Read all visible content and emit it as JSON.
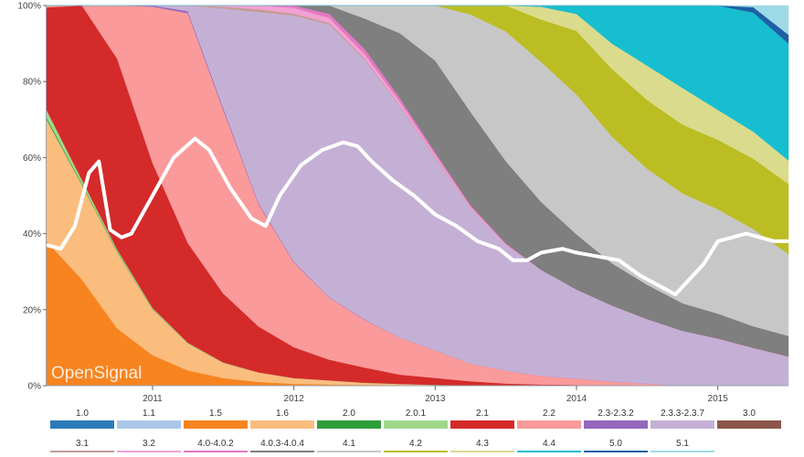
{
  "watermark": "OpenSignal",
  "chart_data": {
    "type": "area",
    "stacked": true,
    "percent_axis": true,
    "x": [
      2010.25,
      2010.5,
      2010.75,
      2011.0,
      2011.25,
      2011.5,
      2011.75,
      2012.0,
      2012.25,
      2012.5,
      2012.75,
      2013.0,
      2013.25,
      2013.5,
      2013.75,
      2014.0,
      2014.25,
      2014.5,
      2014.75,
      2015.0,
      2015.25,
      2015.5
    ],
    "ylim": [
      0,
      100
    ],
    "yticks": [
      "0%",
      "20%",
      "40%",
      "60%",
      "80%",
      "100%"
    ],
    "xticks": [
      {
        "value": 2011,
        "label": "2011"
      },
      {
        "value": 2012,
        "label": "2012"
      },
      {
        "value": 2013,
        "label": "2013"
      },
      {
        "value": 2014,
        "label": "2014"
      },
      {
        "value": 2015,
        "label": "2015"
      }
    ],
    "grid": false,
    "legend_position": "bottom",
    "series": [
      {
        "name": "1.0",
        "color": "#2b7bb9",
        "values": [
          0,
          0,
          0,
          0,
          0,
          0,
          0,
          0,
          0,
          0,
          0,
          0,
          0,
          0,
          0,
          0,
          0,
          0,
          0,
          0,
          0,
          0
        ]
      },
      {
        "name": "1.1",
        "color": "#aac7e8",
        "values": [
          0,
          0,
          0,
          0,
          0,
          0,
          0,
          0,
          0,
          0,
          0,
          0,
          0,
          0,
          0,
          0,
          0,
          0,
          0,
          0,
          0,
          0
        ]
      },
      {
        "name": "1.5",
        "color": "#f7841f",
        "values": [
          38,
          28,
          15,
          8,
          4,
          2,
          1,
          0.5,
          0.3,
          0.2,
          0.1,
          0,
          0,
          0,
          0,
          0,
          0,
          0,
          0,
          0,
          0,
          0
        ]
      },
      {
        "name": "1.6",
        "color": "#fbbd7e",
        "values": [
          32,
          25,
          20,
          12,
          7,
          4,
          2.5,
          1.5,
          1,
          0.5,
          0.3,
          0.2,
          0,
          0,
          0,
          0,
          0,
          0,
          0,
          0,
          0,
          0
        ]
      },
      {
        "name": "2.0",
        "color": "#2e9e3b",
        "values": [
          0.5,
          0.3,
          0.2,
          0.1,
          0,
          0,
          0,
          0,
          0,
          0,
          0,
          0,
          0,
          0,
          0,
          0,
          0,
          0,
          0,
          0,
          0,
          0
        ]
      },
      {
        "name": "2.0.1",
        "color": "#9fd88b",
        "values": [
          2,
          1,
          0.5,
          0.3,
          0.2,
          0.1,
          0,
          0,
          0,
          0,
          0,
          0,
          0,
          0,
          0,
          0,
          0,
          0,
          0,
          0,
          0,
          0
        ]
      },
      {
        "name": "2.1",
        "color": "#d42a2a",
        "values": [
          27,
          46,
          50,
          38,
          26,
          18,
          12,
          8,
          5,
          3.5,
          2,
          1.5,
          1,
          0.5,
          0.3,
          0.2,
          0,
          0,
          0,
          0,
          0,
          0
        ]
      },
      {
        "name": "2.2",
        "color": "#fb9a9a",
        "values": [
          0.5,
          0,
          14,
          41,
          60,
          48,
          32,
          22,
          15,
          11,
          8,
          6,
          4,
          3,
          2,
          1.5,
          1,
          0.5,
          0,
          0,
          0,
          0
        ]
      },
      {
        "name": "2.3-2.3.2",
        "color": "#9467bd",
        "values": [
          0,
          0,
          0,
          0.3,
          0.5,
          0.5,
          0.3,
          0.2,
          0.1,
          0.1,
          0,
          0,
          0,
          0,
          0,
          0,
          0,
          0,
          0,
          0,
          0,
          0
        ]
      },
      {
        "name": "2.3.3-2.3.7",
        "color": "#c5b0d5",
        "values": [
          0,
          0,
          0,
          0,
          1.5,
          26,
          50,
          64,
          66,
          60,
          50,
          42,
          35,
          29,
          25,
          21,
          18,
          15,
          12,
          9.5,
          7,
          5
        ]
      },
      {
        "name": "3.0",
        "color": "#8c564b",
        "values": [
          0,
          0,
          0,
          0,
          0,
          0,
          0,
          0,
          0,
          0,
          0,
          0,
          0,
          0,
          0,
          0,
          0,
          0,
          0,
          0,
          0,
          0
        ]
      },
      {
        "name": "3.1",
        "color": "#c49c94",
        "values": [
          0,
          0,
          0,
          0,
          0,
          0.5,
          0.7,
          0.5,
          0.4,
          0.3,
          0.2,
          0.2,
          0.1,
          0,
          0,
          0,
          0,
          0,
          0,
          0,
          0,
          0
        ]
      },
      {
        "name": "3.2",
        "color": "#f2a1d4",
        "values": [
          0,
          0,
          0,
          0,
          0,
          0.3,
          1,
          1.5,
          1.2,
          1,
          0.8,
          0.5,
          0.3,
          0.2,
          0,
          0,
          0,
          0,
          0,
          0,
          0,
          0
        ]
      },
      {
        "name": "4.0-4.0.2",
        "color": "#e377c2",
        "values": [
          0,
          0,
          0,
          0,
          0,
          0,
          0,
          0.6,
          1,
          1.2,
          0.8,
          0.5,
          0.3,
          0.2,
          0,
          0,
          0,
          0,
          0,
          0,
          0,
          0
        ]
      },
      {
        "name": "4.0.3-4.0.4",
        "color": "#7f7f7f",
        "values": [
          0,
          0,
          0,
          0,
          0,
          0,
          0,
          0,
          2,
          7,
          14,
          20,
          21,
          19,
          16,
          13,
          10,
          8,
          6,
          5,
          4,
          3.5
        ]
      },
      {
        "name": "4.1",
        "color": "#c7c7c7",
        "values": [
          0,
          0,
          0,
          0,
          0,
          0,
          0,
          0,
          0,
          3,
          6,
          12,
          22,
          30,
          33,
          33,
          30,
          27,
          24,
          21,
          18,
          14
        ]
      },
      {
        "name": "4.2",
        "color": "#bcbd22",
        "values": [
          0,
          0,
          0,
          0,
          0,
          0,
          0,
          0,
          0,
          0,
          0,
          0,
          2,
          6,
          10,
          15,
          16,
          16,
          15,
          14,
          13,
          12
        ]
      },
      {
        "name": "4.3",
        "color": "#dbdb8d",
        "values": [
          0,
          0,
          0,
          0,
          0,
          0,
          0,
          0,
          0,
          0,
          0,
          0,
          0,
          0,
          3,
          4,
          6,
          8,
          8,
          6,
          5,
          4
        ]
      },
      {
        "name": "4.4",
        "color": "#17becf",
        "values": [
          0,
          0,
          0,
          0,
          0,
          0,
          0,
          0,
          0,
          0,
          0,
          0,
          0,
          0,
          0.3,
          2,
          9,
          14,
          18,
          21,
          22,
          20
        ]
      },
      {
        "name": "5.0",
        "color": "#1f5fa5",
        "values": [
          0,
          0,
          0,
          0,
          0,
          0,
          0,
          0,
          0,
          0,
          0,
          0,
          0,
          0,
          0,
          0,
          0,
          0,
          0,
          0,
          1,
          1.5
        ]
      },
      {
        "name": "5.1",
        "color": "#9edae5",
        "values": [
          0,
          0,
          0,
          0,
          0,
          0,
          0,
          0,
          0,
          0,
          0,
          0,
          0,
          0,
          0,
          0,
          0,
          0,
          0,
          0,
          0.3,
          5
        ]
      }
    ],
    "line": {
      "color": "#ffffff",
      "x": [
        2010.25,
        2010.35,
        2010.45,
        2010.55,
        2010.62,
        2010.7,
        2010.78,
        2010.85,
        2011.0,
        2011.15,
        2011.3,
        2011.4,
        2011.55,
        2011.7,
        2011.8,
        2011.9,
        2012.05,
        2012.2,
        2012.35,
        2012.45,
        2012.55,
        2012.7,
        2012.85,
        2013.0,
        2013.15,
        2013.3,
        2013.45,
        2013.55,
        2013.65,
        2013.75,
        2013.9,
        2014.0,
        2014.15,
        2014.3,
        2014.45,
        2014.6,
        2014.7,
        2014.8,
        2014.9,
        2015.0,
        2015.1,
        2015.2,
        2015.3,
        2015.4,
        2015.5
      ],
      "values": [
        37,
        36,
        42,
        56,
        59,
        41,
        39,
        40,
        50,
        60,
        65,
        62,
        52,
        44,
        42,
        50,
        58,
        62,
        64,
        63,
        59,
        54,
        50,
        45,
        42,
        38,
        36,
        33,
        33,
        35,
        36,
        35,
        34,
        33,
        29,
        26,
        24,
        28,
        32,
        38,
        39,
        40,
        39,
        38,
        38
      ]
    }
  }
}
